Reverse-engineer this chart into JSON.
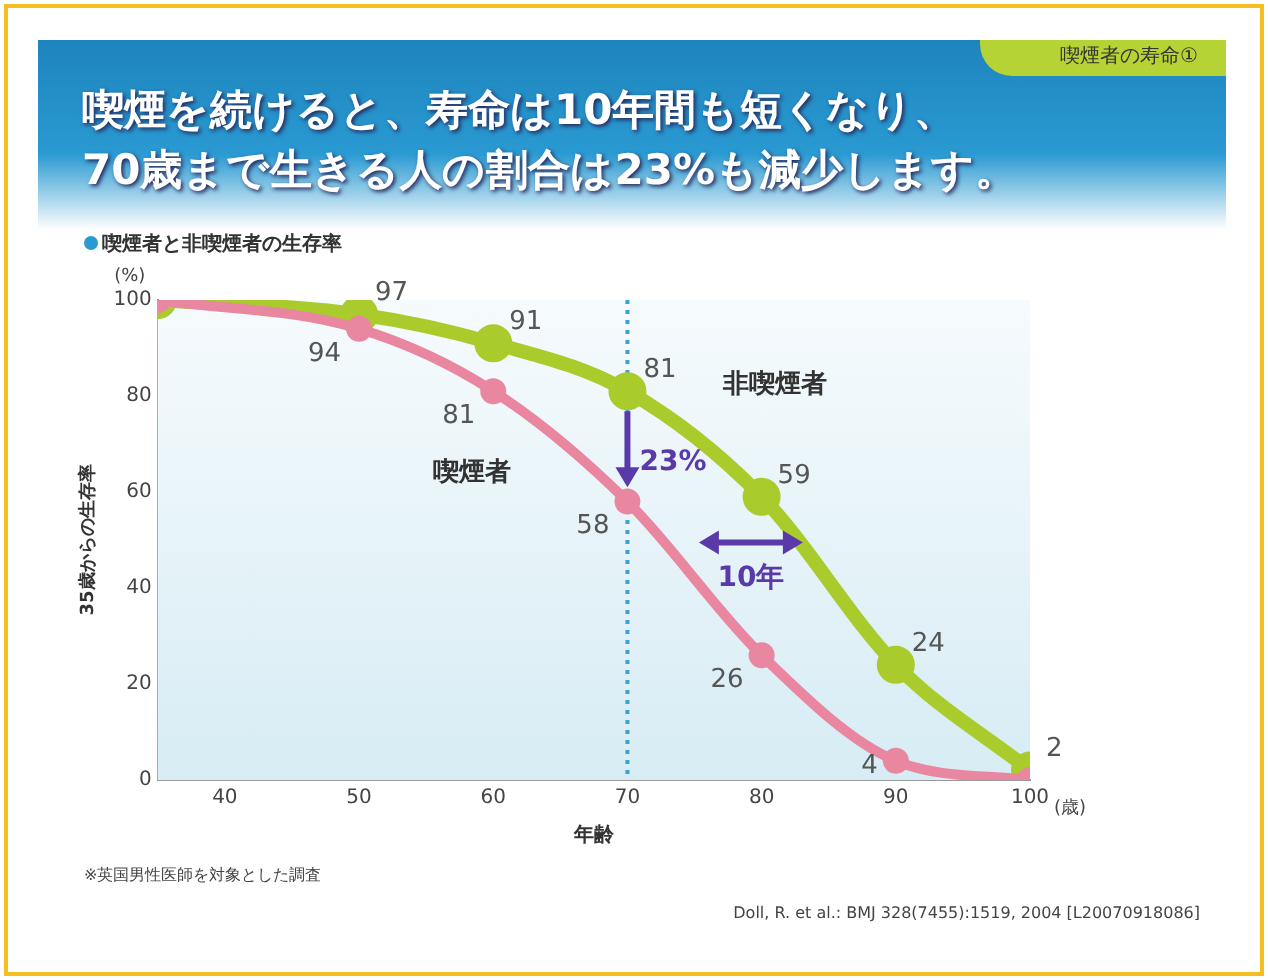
{
  "chart_data": {
    "type": "line",
    "title": "喫煙を続けると、寿命は10年間も短くなり、\n70歳まで生きる人の割合は23%も減少します。",
    "subtitle": "喫煙者と非喫煙者の生存率",
    "xlabel": "年齢",
    "ylabel": "35歳からの生存率",
    "x": [
      35,
      50,
      60,
      70,
      80,
      90,
      100
    ],
    "series": [
      {
        "name": "喫煙者",
        "color": "#e8879f",
        "values": [
          100,
          94,
          81,
          58,
          26,
          4,
          0
        ],
        "value_labels": [
          null,
          "94",
          "81",
          "58",
          "26",
          "4",
          null
        ]
      },
      {
        "name": "非喫煙者",
        "color": "#a9cc2c",
        "values": [
          100,
          97,
          91,
          81,
          59,
          24,
          2
        ],
        "value_labels": [
          null,
          "97",
          "91",
          "81",
          "59",
          "24",
          "2"
        ]
      }
    ],
    "xlim": [
      35,
      100
    ],
    "xticks": [
      40,
      50,
      60,
      70,
      80,
      90,
      100
    ],
    "ylim": [
      0,
      100
    ],
    "yticks": [
      0,
      20,
      40,
      60,
      80,
      100
    ],
    "ref_lines": [
      {
        "axis": "x",
        "value": 70,
        "color": "#3aa0d8",
        "line_style": "dotted"
      }
    ],
    "annotations": [
      "喫煙者の寿命①",
      "(%)",
      "(歳)",
      "※英国男性医師を対象とした調査",
      "Doll, R. et al.: BMJ 328(7455):1519, 2004 [L20070918086]",
      {
        "text": "23%",
        "x": 70,
        "y": 66
      },
      "10年"
    ],
    "grid": false,
    "legend": false,
    "marker": "circle",
    "line_style": "solid"
  }
}
